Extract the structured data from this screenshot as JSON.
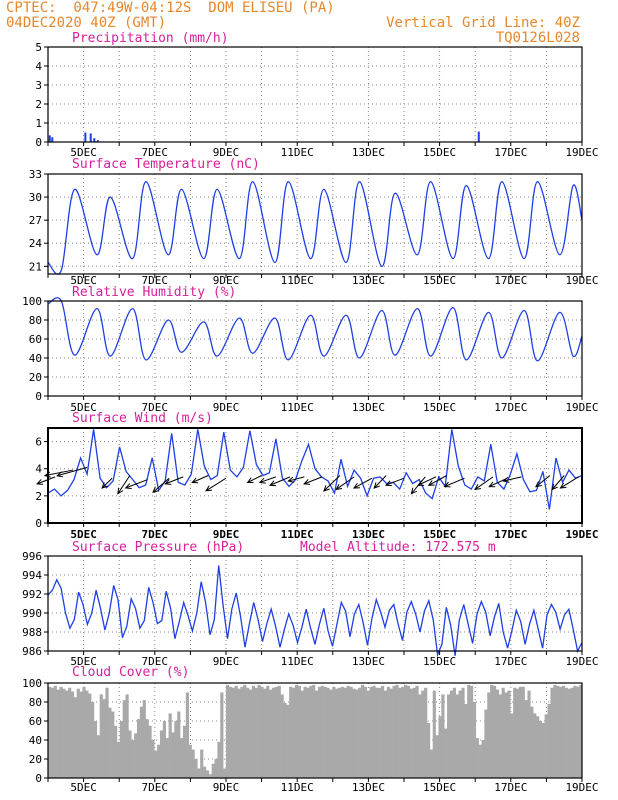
{
  "header": {
    "line1_left": "CPTEC:  047:49W-04:12S  DOM ELISEU (PA)",
    "line2_left": "04DEC2020 40Z (GMT)",
    "line1_right": "Vertical Grid Line: 40Z",
    "line2_right": "TQ0126L028"
  },
  "colors": {
    "header": "#e8872a",
    "title": "#d81f9a",
    "line": "#1f3fe6",
    "cloud": "#a9a9a9",
    "arrow": "#000000",
    "grid": "#888888"
  },
  "x_labels": [
    "5DEC",
    "7DEC",
    "9DEC",
    "11DEC",
    "13DEC",
    "15DEC",
    "17DEC",
    "19DEC"
  ],
  "chart_data": [
    {
      "type": "bar",
      "title": "Precipitation (mm/h)",
      "ylim": [
        0,
        5
      ],
      "yticks": [
        0,
        1,
        2,
        3,
        4,
        5
      ],
      "x_start_day": 4.0,
      "x_end_day": 19.0,
      "bars": [
        [
          4.05,
          0.35
        ],
        [
          4.12,
          0.25
        ],
        [
          5.05,
          0.5
        ],
        [
          5.2,
          0.45
        ],
        [
          5.3,
          0.2
        ],
        [
          5.4,
          0.1
        ],
        [
          16.1,
          0.55
        ]
      ]
    },
    {
      "type": "line",
      "title": "Surface Temperature (nC)",
      "ylim": [
        20,
        33
      ],
      "yticks": [
        21,
        24,
        27,
        30,
        33
      ],
      "x_start_day": 4.0,
      "x_end_day": 19.0,
      "max_hour": 18,
      "min_hour": 9,
      "daily_max": [
        31.0,
        30.0,
        32.0,
        31.0,
        31.0,
        32.0,
        32.0,
        31.0,
        32.0,
        30.5,
        32.0,
        31.5,
        32.0,
        32.0,
        31.5
      ],
      "daily_min": [
        20.5,
        22.5,
        22.0,
        22.5,
        22.0,
        22.0,
        21.5,
        22.0,
        21.5,
        21.0,
        22.5,
        22.0,
        22.0,
        22.0,
        22.5
      ],
      "start_value": 21.5,
      "end_value": 27.0
    },
    {
      "type": "line",
      "title": "Relative Humidity (%)",
      "ylim": [
        0,
        100
      ],
      "yticks": [
        0,
        20,
        40,
        60,
        80,
        100
      ],
      "x_start_day": 4.0,
      "x_end_day": 19.0,
      "max_hour": 9,
      "min_hour": 18,
      "daily_max": [
        100,
        92,
        92,
        80,
        78,
        82,
        82,
        85,
        85,
        90,
        92,
        93,
        88,
        90,
        88
      ],
      "daily_min": [
        43,
        42,
        38,
        46,
        42,
        45,
        38,
        42,
        40,
        43,
        42,
        38,
        40,
        37,
        42
      ],
      "start_value": 97,
      "end_value": 63
    },
    {
      "type": "line",
      "title": "Surface Wind (m/s)",
      "ylim": [
        0,
        7
      ],
      "yticks": [
        0,
        2,
        4,
        6
      ],
      "x_start_day": 4.0,
      "x_end_day": 19.0,
      "values": [
        2.2,
        2.5,
        2.0,
        2.4,
        3.2,
        4.8,
        3.6,
        6.9,
        3.3,
        2.6,
        3.1,
        5.6,
        3.8,
        3.2,
        2.6,
        2.8,
        4.8,
        2.4,
        3.1,
        6.6,
        3.0,
        2.8,
        3.6,
        6.9,
        4.2,
        3.2,
        3.5,
        6.7,
        3.9,
        3.4,
        4.1,
        6.8,
        4.3,
        3.5,
        3.7,
        6.2,
        3.3,
        2.7,
        3.2,
        4.6,
        5.8,
        4.0,
        3.4,
        3.1,
        2.2,
        4.7,
        2.7,
        3.9,
        3.3,
        2.0,
        3.3,
        3.4,
        2.9,
        3.0,
        2.5,
        3.7,
        2.9,
        3.2,
        2.2,
        1.8,
        3.4,
        2.7,
        6.9,
        4.2,
        2.8,
        2.5,
        3.4,
        3.1,
        5.8,
        3.0,
        2.5,
        3.6,
        5.1,
        3.2,
        2.3,
        2.4,
        3.8,
        1.0,
        4.8,
        3.0,
        3.9,
        3.3,
        3.5
      ],
      "vectors": [
        [
          4.2,
          3.4,
          -0.9,
          -0.5
        ],
        [
          4.7,
          3.9,
          -1.4,
          -0.4
        ],
        [
          5.1,
          4.1,
          -1.5,
          -0.6
        ],
        [
          5.8,
          3.3,
          -0.5,
          -0.7
        ],
        [
          6.3,
          3.5,
          -0.6,
          -1.3
        ],
        [
          6.8,
          3.2,
          -1.1,
          -0.6
        ],
        [
          7.4,
          3.3,
          -0.8,
          -1.0
        ],
        [
          7.8,
          3.4,
          -0.9,
          -0.5
        ],
        [
          8.5,
          3.5,
          -0.8,
          -0.5
        ],
        [
          9.0,
          3.3,
          -1.0,
          -0.9
        ],
        [
          10.0,
          3.5,
          -0.7,
          -0.5
        ],
        [
          10.4,
          3.4,
          -0.8,
          -0.4
        ],
        [
          10.8,
          3.4,
          -1.0,
          -0.6
        ],
        [
          11.2,
          3.4,
          -0.8,
          -0.3
        ],
        [
          11.7,
          3.4,
          -0.9,
          -0.5
        ],
        [
          12.2,
          3.5,
          -0.8,
          -1.1
        ],
        [
          12.6,
          3.4,
          -0.9,
          -0.9
        ],
        [
          13.1,
          3.3,
          -0.9,
          -0.7
        ],
        [
          13.5,
          3.5,
          -0.6,
          -0.9
        ],
        [
          14.0,
          3.3,
          -0.9,
          -0.5
        ],
        [
          14.6,
          3.4,
          -0.7,
          -1.2
        ],
        [
          14.9,
          3.4,
          -0.9,
          -0.6
        ],
        [
          15.2,
          3.5,
          -0.9,
          -0.7
        ],
        [
          15.7,
          3.3,
          -1.0,
          -0.6
        ],
        [
          16.5,
          3.4,
          -0.9,
          -0.9
        ],
        [
          16.9,
          3.3,
          -0.9,
          -0.6
        ],
        [
          17.3,
          3.4,
          -0.9,
          -0.3
        ],
        [
          18.1,
          3.5,
          -0.7,
          -0.8
        ],
        [
          18.5,
          3.5,
          -0.6,
          -1.0
        ],
        [
          18.9,
          3.4,
          -0.9,
          -0.8
        ]
      ]
    },
    {
      "type": "line",
      "title": "Surface Pressure (hPa)",
      "annotation": "Model Altitude: 172.575 m",
      "ylim": [
        986,
        996
      ],
      "yticks": [
        986,
        988,
        990,
        992,
        994,
        996
      ],
      "x_start_day": 4.0,
      "x_end_day": 19.0,
      "values": [
        991.9,
        992.4,
        993.5,
        992.6,
        990.0,
        988.4,
        989.3,
        992.2,
        990.9,
        988.8,
        990.0,
        992.4,
        990.5,
        988.2,
        990.0,
        992.9,
        991.4,
        987.4,
        988.6,
        991.5,
        990.5,
        988.4,
        989.2,
        992.7,
        991.1,
        988.9,
        989.2,
        992.3,
        990.5,
        987.3,
        989.1,
        991.1,
        989.7,
        988.1,
        990.0,
        993.3,
        991.1,
        987.7,
        989.3,
        995.0,
        990.8,
        987.3,
        990.4,
        992.1,
        989.6,
        986.4,
        988.8,
        991.1,
        989.3,
        987.0,
        988.9,
        990.4,
        988.6,
        986.4,
        988.3,
        989.9,
        988.7,
        986.9,
        988.5,
        990.4,
        988.4,
        986.7,
        988.8,
        990.5,
        988.1,
        986.5,
        988.8,
        991.1,
        990.2,
        987.5,
        989.9,
        990.9,
        989.0,
        986.6,
        989.4,
        991.4,
        990.1,
        988.5,
        990.3,
        990.9,
        988.8,
        987.1,
        990.1,
        991.2,
        989.9,
        988.0,
        990.2,
        991.3,
        989.3,
        985.6,
        986.7,
        990.6,
        988.7,
        985.5,
        989.3,
        990.9,
        988.8,
        986.8,
        989.9,
        991.2,
        990.1,
        987.6,
        989.6,
        991.0,
        988.0,
        986.3,
        988.2,
        990.3,
        989.1,
        986.7,
        988.8,
        990.3,
        988.3,
        986.3,
        989.8,
        990.9,
        990.1,
        988.3,
        989.8,
        990.4,
        988.3,
        986.0,
        986.9
      ]
    },
    {
      "type": "area",
      "title": "Cloud Cover (%)",
      "ylim": [
        0,
        100
      ],
      "yticks": [
        0,
        20,
        40,
        60,
        80,
        100
      ],
      "x_start_day": 4.0,
      "x_end_day": 19.0,
      "values": [
        96,
        95,
        97,
        93,
        96,
        94,
        92,
        95,
        91,
        85,
        94,
        91,
        96,
        92,
        89,
        80,
        60,
        45,
        88,
        83,
        95,
        74,
        70,
        55,
        38,
        60,
        82,
        88,
        50,
        40,
        47,
        62,
        75,
        82,
        62,
        55,
        40,
        29,
        35,
        50,
        60,
        42,
        68,
        48,
        60,
        70,
        42,
        55,
        90,
        35,
        30,
        20,
        10,
        30,
        12,
        8,
        4,
        15,
        20,
        38,
        90,
        10,
        98,
        96,
        95,
        97,
        94,
        96,
        98,
        95,
        93,
        97,
        95,
        98,
        96,
        94,
        97,
        93,
        95,
        96,
        97,
        88,
        79,
        77,
        96,
        95,
        98,
        97,
        92,
        96,
        95,
        97,
        98,
        92,
        96,
        97,
        96,
        95,
        93,
        96,
        94,
        95,
        96,
        95,
        97,
        96,
        94,
        93,
        95,
        98,
        96,
        92,
        96,
        97,
        95,
        95,
        97,
        92,
        96,
        94,
        97,
        98,
        95,
        96,
        98,
        97,
        94,
        95,
        97,
        88,
        92,
        95,
        58,
        30,
        92,
        45,
        65,
        88,
        52,
        88,
        92,
        95,
        88,
        92,
        95,
        78,
        98,
        97,
        80,
        42,
        35,
        40,
        72,
        90,
        98,
        97,
        93,
        88,
        95,
        90,
        92,
        68,
        95,
        94,
        96,
        96,
        82,
        92,
        75,
        68,
        65,
        60,
        58,
        67,
        78,
        95,
        98,
        97,
        96,
        97,
        95,
        94,
        95,
        97,
        96,
        98
      ]
    }
  ]
}
